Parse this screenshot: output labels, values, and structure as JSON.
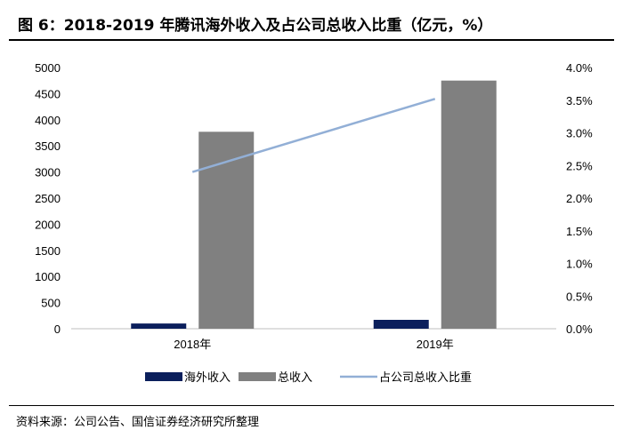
{
  "title": "图 6：2018-2019 年腾讯海外收入及占公司总收入比重（亿元，%）",
  "source": "资料来源：公司公告、国信证券经济研究所整理",
  "chart_data": {
    "type": "bar",
    "categories": [
      "2018年",
      "2019年"
    ],
    "series": [
      {
        "name": "海外收入",
        "type": "bar",
        "axis": "left",
        "color": "#0b1f5c",
        "values": [
          100,
          170
        ]
      },
      {
        "name": "总收入",
        "type": "bar",
        "axis": "left",
        "color": "#808080",
        "values": [
          3770,
          4750
        ]
      },
      {
        "name": "占公司总收入比重",
        "type": "line",
        "axis": "right",
        "color": "#92afd6",
        "values": [
          0.024,
          0.0352
        ]
      }
    ],
    "y_left": {
      "min": 0,
      "max": 5000,
      "step": 500,
      "ticks": [
        "0",
        "500",
        "1000",
        "1500",
        "2000",
        "2500",
        "3000",
        "3500",
        "4000",
        "4500",
        "5000"
      ]
    },
    "y_right": {
      "min": 0,
      "max": 0.04,
      "step": 0.005,
      "ticks": [
        "0.0%",
        "0.5%",
        "1.0%",
        "1.5%",
        "2.0%",
        "2.5%",
        "3.0%",
        "3.5%",
        "4.0%"
      ]
    },
    "legend_position": "bottom",
    "grid": false
  }
}
